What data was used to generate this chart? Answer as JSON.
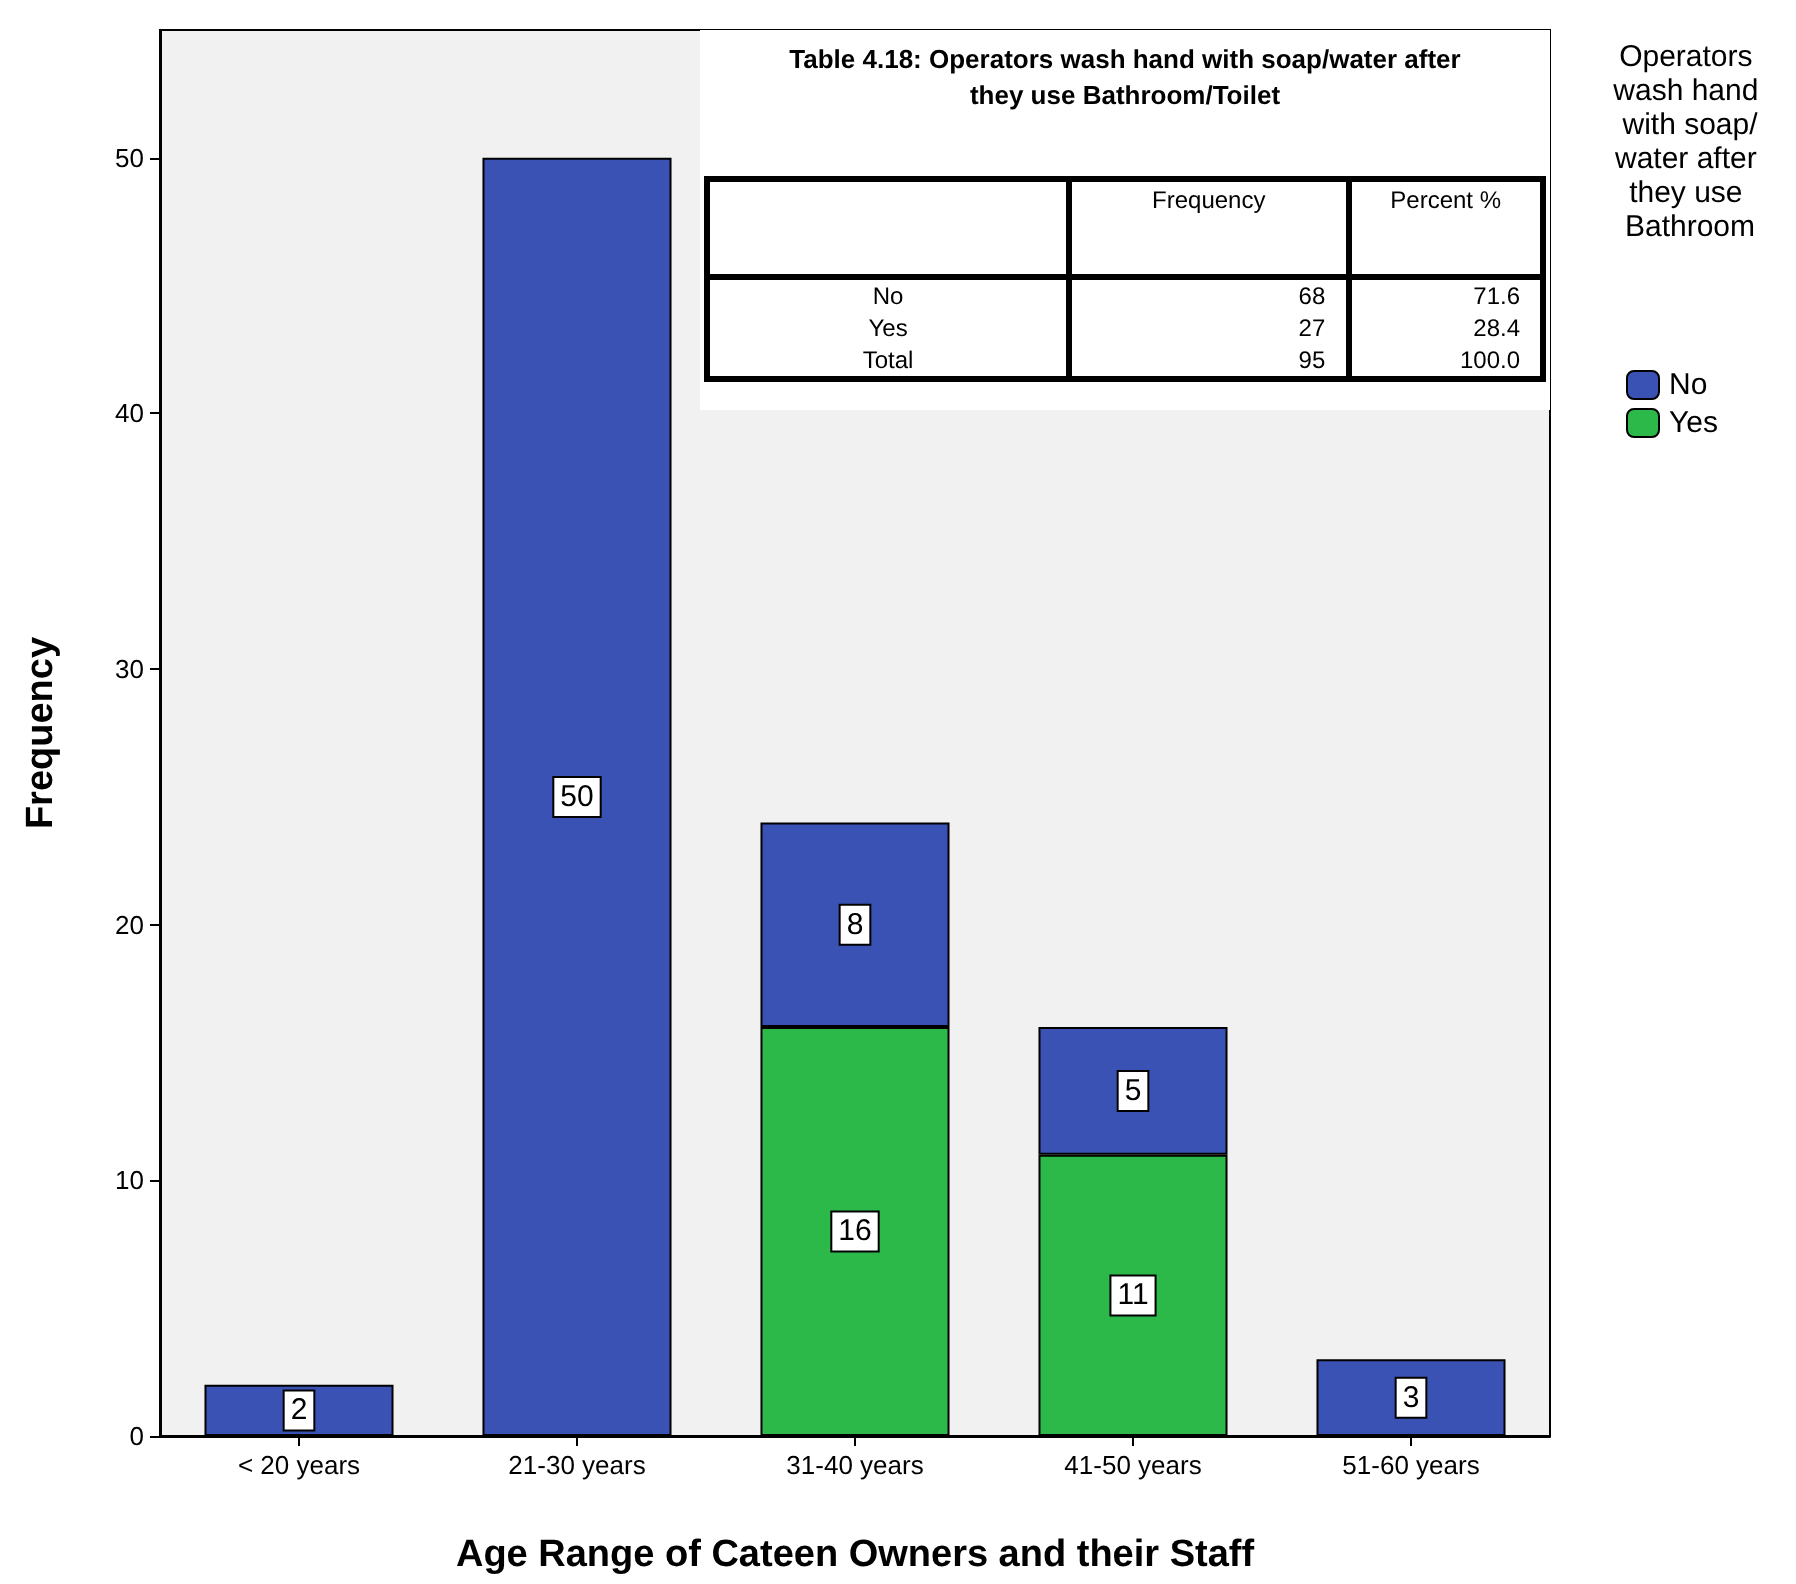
{
  "chart_data": {
    "type": "bar",
    "stacked": true,
    "xlabel": "Age Range of Cateen Owners and their Staff",
    "ylabel": "Frequency",
    "legend_title": "Operators wash hand with soap/water after they use Bathroom",
    "categories": [
      "< 20 years",
      "21-30 years",
      "31-40 years",
      "41-50 years",
      "51-60 years"
    ],
    "series": [
      {
        "name": "Yes",
        "color": "#2db84a",
        "values": [
          null,
          null,
          16,
          11,
          null
        ]
      },
      {
        "name": "No",
        "color": "#3a52b4",
        "values": [
          2,
          50,
          8,
          5,
          3
        ]
      }
    ],
    "ylim": [
      0,
      55
    ],
    "yticks": [
      0,
      10,
      20,
      30,
      40,
      50
    ],
    "grid": false,
    "legend": "right",
    "data_labels": true,
    "annotations": [
      "Table 4.18: Operators  wash hand with soap/water after they use Bathroom/Toilet",
      "Frequency",
      "Percent %",
      "No",
      "68",
      "71.6",
      "Yes",
      "27",
      "28.4",
      "Total",
      "95",
      "100.0"
    ]
  }
}
